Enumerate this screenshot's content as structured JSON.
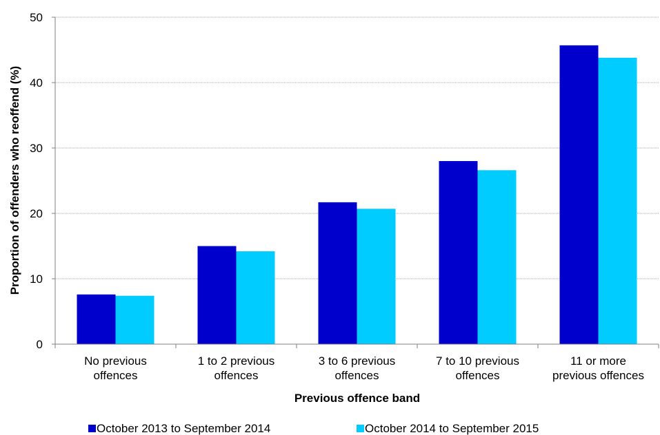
{
  "chart_data": {
    "type": "bar",
    "categories": [
      [
        "No previous",
        "offences"
      ],
      [
        "1 to 2 previous",
        "offences"
      ],
      [
        "3 to 6 previous",
        "offences"
      ],
      [
        "7 to 10 previous",
        "offences"
      ],
      [
        "11 or more",
        "previous offences"
      ]
    ],
    "series": [
      {
        "name": "October 2013 to September 2014",
        "color": "#0000CC",
        "values": [
          7.6,
          15.0,
          21.7,
          28.0,
          45.7
        ]
      },
      {
        "name": "October 2014 to September 2015",
        "color": "#00CCFF",
        "values": [
          7.4,
          14.2,
          20.7,
          26.6,
          43.8
        ]
      }
    ],
    "xlabel": "Previous offence band",
    "ylabel": "Proportion of offenders who reoffend (%)",
    "ylim": [
      0,
      50
    ],
    "yticks": [
      0,
      10,
      20,
      30,
      40,
      50
    ],
    "grid": true,
    "legend_position": "bottom"
  }
}
